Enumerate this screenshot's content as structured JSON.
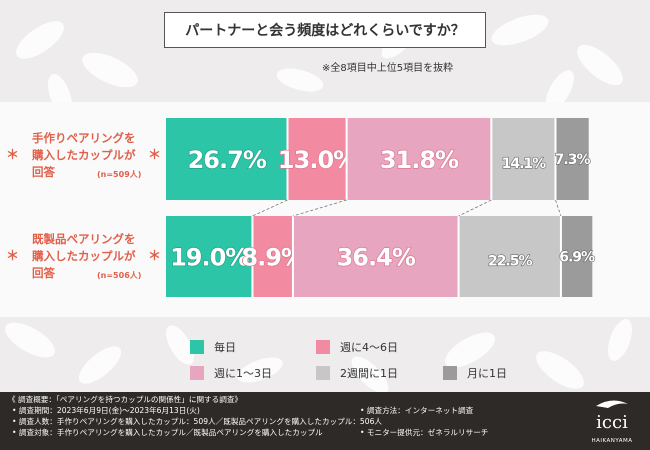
{
  "title": "パートナーと会う頻度はどれくらいですか？",
  "note": "※全8項目中上位5項目を抜粋",
  "chart_data": {
    "type": "stacked-bar-horizontal",
    "unit": "%",
    "categories": [
      "手作りペアリングを購入したカップルが回答",
      "既製品ペアリングを購入したカップルが回答"
    ],
    "category_n": [
      "(n=509人)",
      "(n=506人)"
    ],
    "series": [
      {
        "name": "毎日",
        "color": "#2cc5a8",
        "values": [
          26.7,
          19.0
        ]
      },
      {
        "name": "週に4〜6日",
        "color": "#f28ba1",
        "values": [
          13.0,
          8.9
        ]
      },
      {
        "name": "週に1〜3日",
        "color": "#e8a5bf",
        "values": [
          31.8,
          36.4
        ]
      },
      {
        "name": "2週間に1日",
        "color": "#c7c7c7",
        "values": [
          14.1,
          22.5
        ]
      },
      {
        "name": "月に1日",
        "color": "#9b9b9b",
        "values": [
          7.3,
          6.9
        ]
      }
    ],
    "data_labels": [
      [
        "26.7%",
        "13.0%",
        "31.8%",
        "14.1%",
        "7.3%"
      ],
      [
        "19.0%",
        "8.9%",
        "36.4%",
        "22.5%",
        "6.9%"
      ]
    ]
  },
  "row_labels": [
    {
      "line1": "手作りペアリングを",
      "line2": "購入したカップルが",
      "line3": "回答",
      "n": "(n=509人)",
      "ast": "＊"
    },
    {
      "line1": "既製品ペアリングを",
      "line2": "購入したカップルが",
      "line3": "回答",
      "n": "(n=506人)",
      "ast": "＊"
    }
  ],
  "footer": {
    "overview": "《 調査概要：「ペアリングを持つカップルの関係性」に関する調査》",
    "period": "• 調査期間：2023年6月9日(金)〜2023年6月13日(火)",
    "method": "• 調査方法：インターネット調査",
    "count": "• 調査人数：手作りペアリングを購入したカップル：509人／既製品ペアリングを購入したカップル：506人",
    "target": "• 調査対象：手作りペアリングを購入したカップル／既製品ペアリングを購入したカップル",
    "provider": "• モニター提供元：ゼネラルリサーチ",
    "logo_text": "icci",
    "logo_sub": "HAIKANYAMA"
  }
}
